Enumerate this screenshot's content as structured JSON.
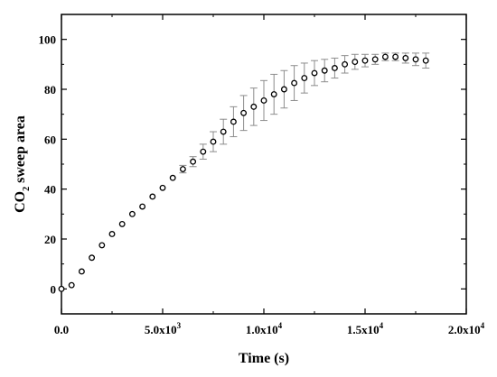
{
  "chart_data": {
    "type": "scatter",
    "title": "",
    "xlabel": "Time (s)",
    "ylabel": "CO2 sweep area",
    "ylabel_parts": {
      "base": "CO",
      "subscript": "2",
      "rest": " sweep area"
    },
    "xlim": [
      0,
      20000
    ],
    "ylim": [
      -10,
      110
    ],
    "x_ticks": [
      {
        "value": 0,
        "label": "0.0",
        "mantissa": "",
        "exponent": ""
      },
      {
        "value": 5000,
        "label": "5.0x10^3",
        "mantissa": "5.0x10",
        "exponent": "3"
      },
      {
        "value": 10000,
        "label": "1.0x10^4",
        "mantissa": "1.0x10",
        "exponent": "4"
      },
      {
        "value": 15000,
        "label": "1.5x10^4",
        "mantissa": "1.5x10",
        "exponent": "4"
      },
      {
        "value": 20000,
        "label": "2.0x10^4",
        "mantissa": "2.0x10",
        "exponent": "4"
      }
    ],
    "y_ticks": [
      0,
      20,
      40,
      60,
      80,
      100
    ],
    "grid": false,
    "marker": "open-circle",
    "marker_color": "#000000",
    "errorbar_color": "#8c8c8c",
    "series": [
      {
        "x": [
          0,
          500,
          1000,
          1500,
          2000,
          2500,
          3000,
          3500,
          4000,
          4500,
          5000,
          5500,
          6000,
          6500,
          7000,
          7500,
          8000,
          8500,
          9000,
          9500,
          10000,
          10500,
          11000,
          11500,
          12000,
          12500,
          13000,
          13500,
          14000,
          14500,
          15000,
          15500,
          16000,
          16500,
          17000,
          17500,
          18000
        ],
        "y": [
          0,
          1.5,
          7,
          12.5,
          17.5,
          22,
          26,
          30,
          33,
          37,
          40.5,
          44.5,
          48,
          51,
          55,
          59,
          63,
          67,
          70.5,
          73,
          75.5,
          78,
          80,
          82.5,
          84.5,
          86.5,
          87.5,
          88.5,
          90,
          91,
          91.5,
          92,
          93,
          93,
          92.5,
          92,
          91.5
        ],
        "error": [
          0,
          0,
          0,
          0,
          0,
          0,
          0,
          0,
          0,
          0,
          0,
          0,
          1.5,
          2,
          3,
          4,
          5,
          6,
          7,
          7.5,
          8,
          8,
          7.5,
          7,
          6,
          5,
          4.5,
          4,
          3.5,
          3,
          2.5,
          2,
          1.5,
          1.5,
          2,
          2.5,
          3
        ]
      }
    ]
  }
}
